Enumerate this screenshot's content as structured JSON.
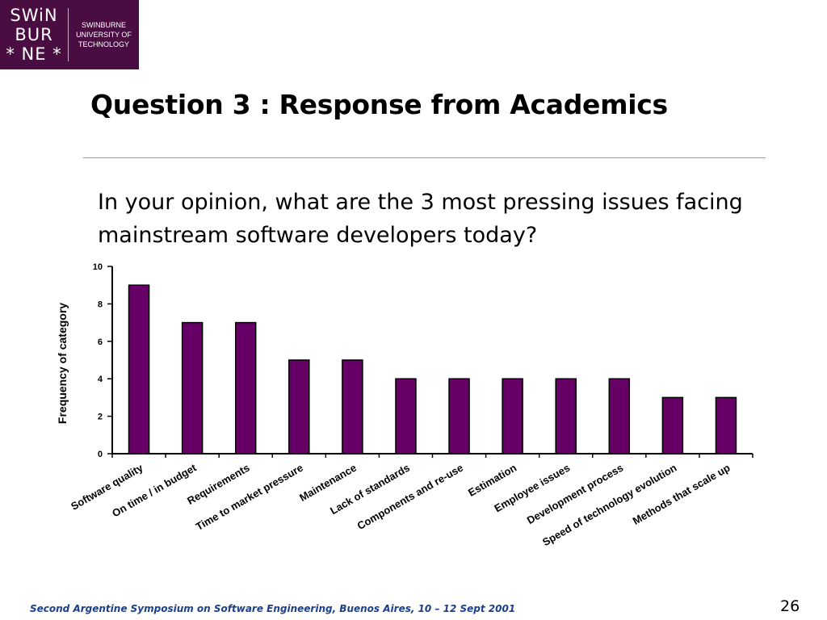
{
  "logo": {
    "mark_lines": [
      "SWiN",
      "BUR",
      "* NE *"
    ],
    "text": "SWINBURNE UNIVERSITY OF TECHNOLOGY"
  },
  "title": "Question 3 : Response from Academics",
  "question": "In your opinion, what are the 3 most pressing issues facing mainstream software developers today?",
  "footer": "Second Argentine Symposium on Software Engineering, Buenos Aires, 10 – 12 Sept 2001",
  "page_number": "26",
  "colors": {
    "bar": "#660066",
    "logo_bg": "#4a0d42",
    "footer": "#1a3f8c"
  },
  "chart_data": {
    "type": "bar",
    "categories": [
      "Software quality",
      "On time / in budget",
      "Requirements",
      "Time to market pressure",
      "Maintenance",
      "Lack of standards",
      "Components and re-use",
      "Estimation",
      "Employee issues",
      "Development process",
      "Speed of technology evolution",
      "Methods that scale up"
    ],
    "values": [
      9,
      7,
      7,
      5,
      5,
      4,
      4,
      4,
      4,
      4,
      3,
      3
    ],
    "ylabel": "Frequency of category",
    "ylim": [
      0,
      10
    ],
    "yticks": [
      0,
      2,
      4,
      6,
      8,
      10
    ],
    "grid": false,
    "legend": "none"
  }
}
